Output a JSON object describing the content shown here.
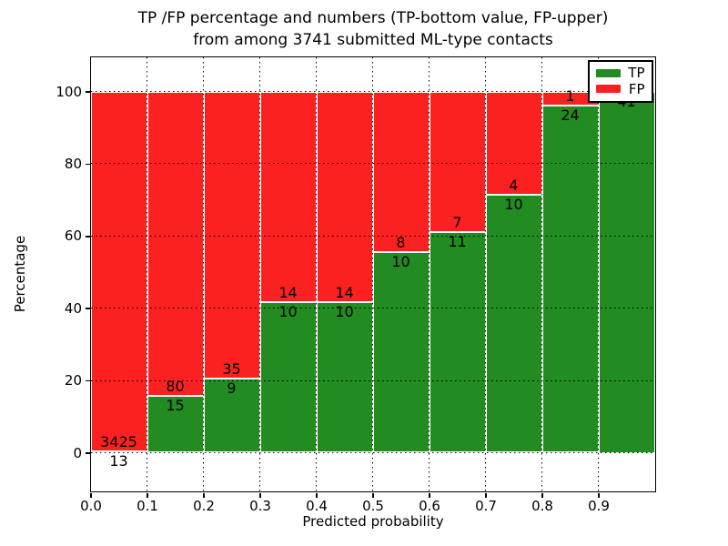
{
  "title": {
    "line1": "TP /FP percentage and numbers (TP-bottom value, FP-upper)",
    "line2": "from among 3741 submitted ML-type contacts"
  },
  "axes": {
    "xlabel": "Predicted probability",
    "ylabel": "Percentage",
    "x_ticks": [
      "0.0",
      "0.1",
      "0.2",
      "0.3",
      "0.4",
      "0.5",
      "0.6",
      "0.7",
      "0.8",
      "0.9"
    ],
    "y_ticks": [
      "0",
      "20",
      "40",
      "60",
      "80",
      "100"
    ]
  },
  "legend": {
    "items": [
      {
        "label": "TP",
        "color": "#228b22"
      },
      {
        "label": "FP",
        "color": "#fb2121"
      }
    ]
  },
  "colors": {
    "tp": "#228b22",
    "fp": "#fb2121",
    "bar_edge": "#ffffff",
    "grid": "#000000"
  },
  "chart_data": {
    "type": "bar",
    "stacked": true,
    "normalized_to_percent": true,
    "title": "TP /FP percentage and numbers (TP-bottom value, FP-upper) from among 3741 submitted ML-type contacts",
    "xlabel": "Predicted probability",
    "ylabel": "Percentage",
    "bins": {
      "start": 0.0,
      "end": 1.0,
      "width": 0.1
    },
    "categories": [
      "0.0-0.1",
      "0.1-0.2",
      "0.2-0.3",
      "0.3-0.4",
      "0.4-0.5",
      "0.5-0.6",
      "0.6-0.7",
      "0.7-0.8",
      "0.8-0.9",
      "0.9-1.0"
    ],
    "series": [
      {
        "name": "TP",
        "counts": [
          13,
          15,
          9,
          10,
          10,
          10,
          11,
          10,
          24,
          41
        ]
      },
      {
        "name": "FP",
        "counts": [
          3425,
          80,
          35,
          14,
          14,
          8,
          7,
          4,
          1,
          0
        ]
      }
    ],
    "total_contacts": 3741,
    "xlim": [
      0.0,
      1.0
    ],
    "ylim": [
      -10,
      110
    ],
    "grid": true,
    "legend_position": "upper right"
  }
}
